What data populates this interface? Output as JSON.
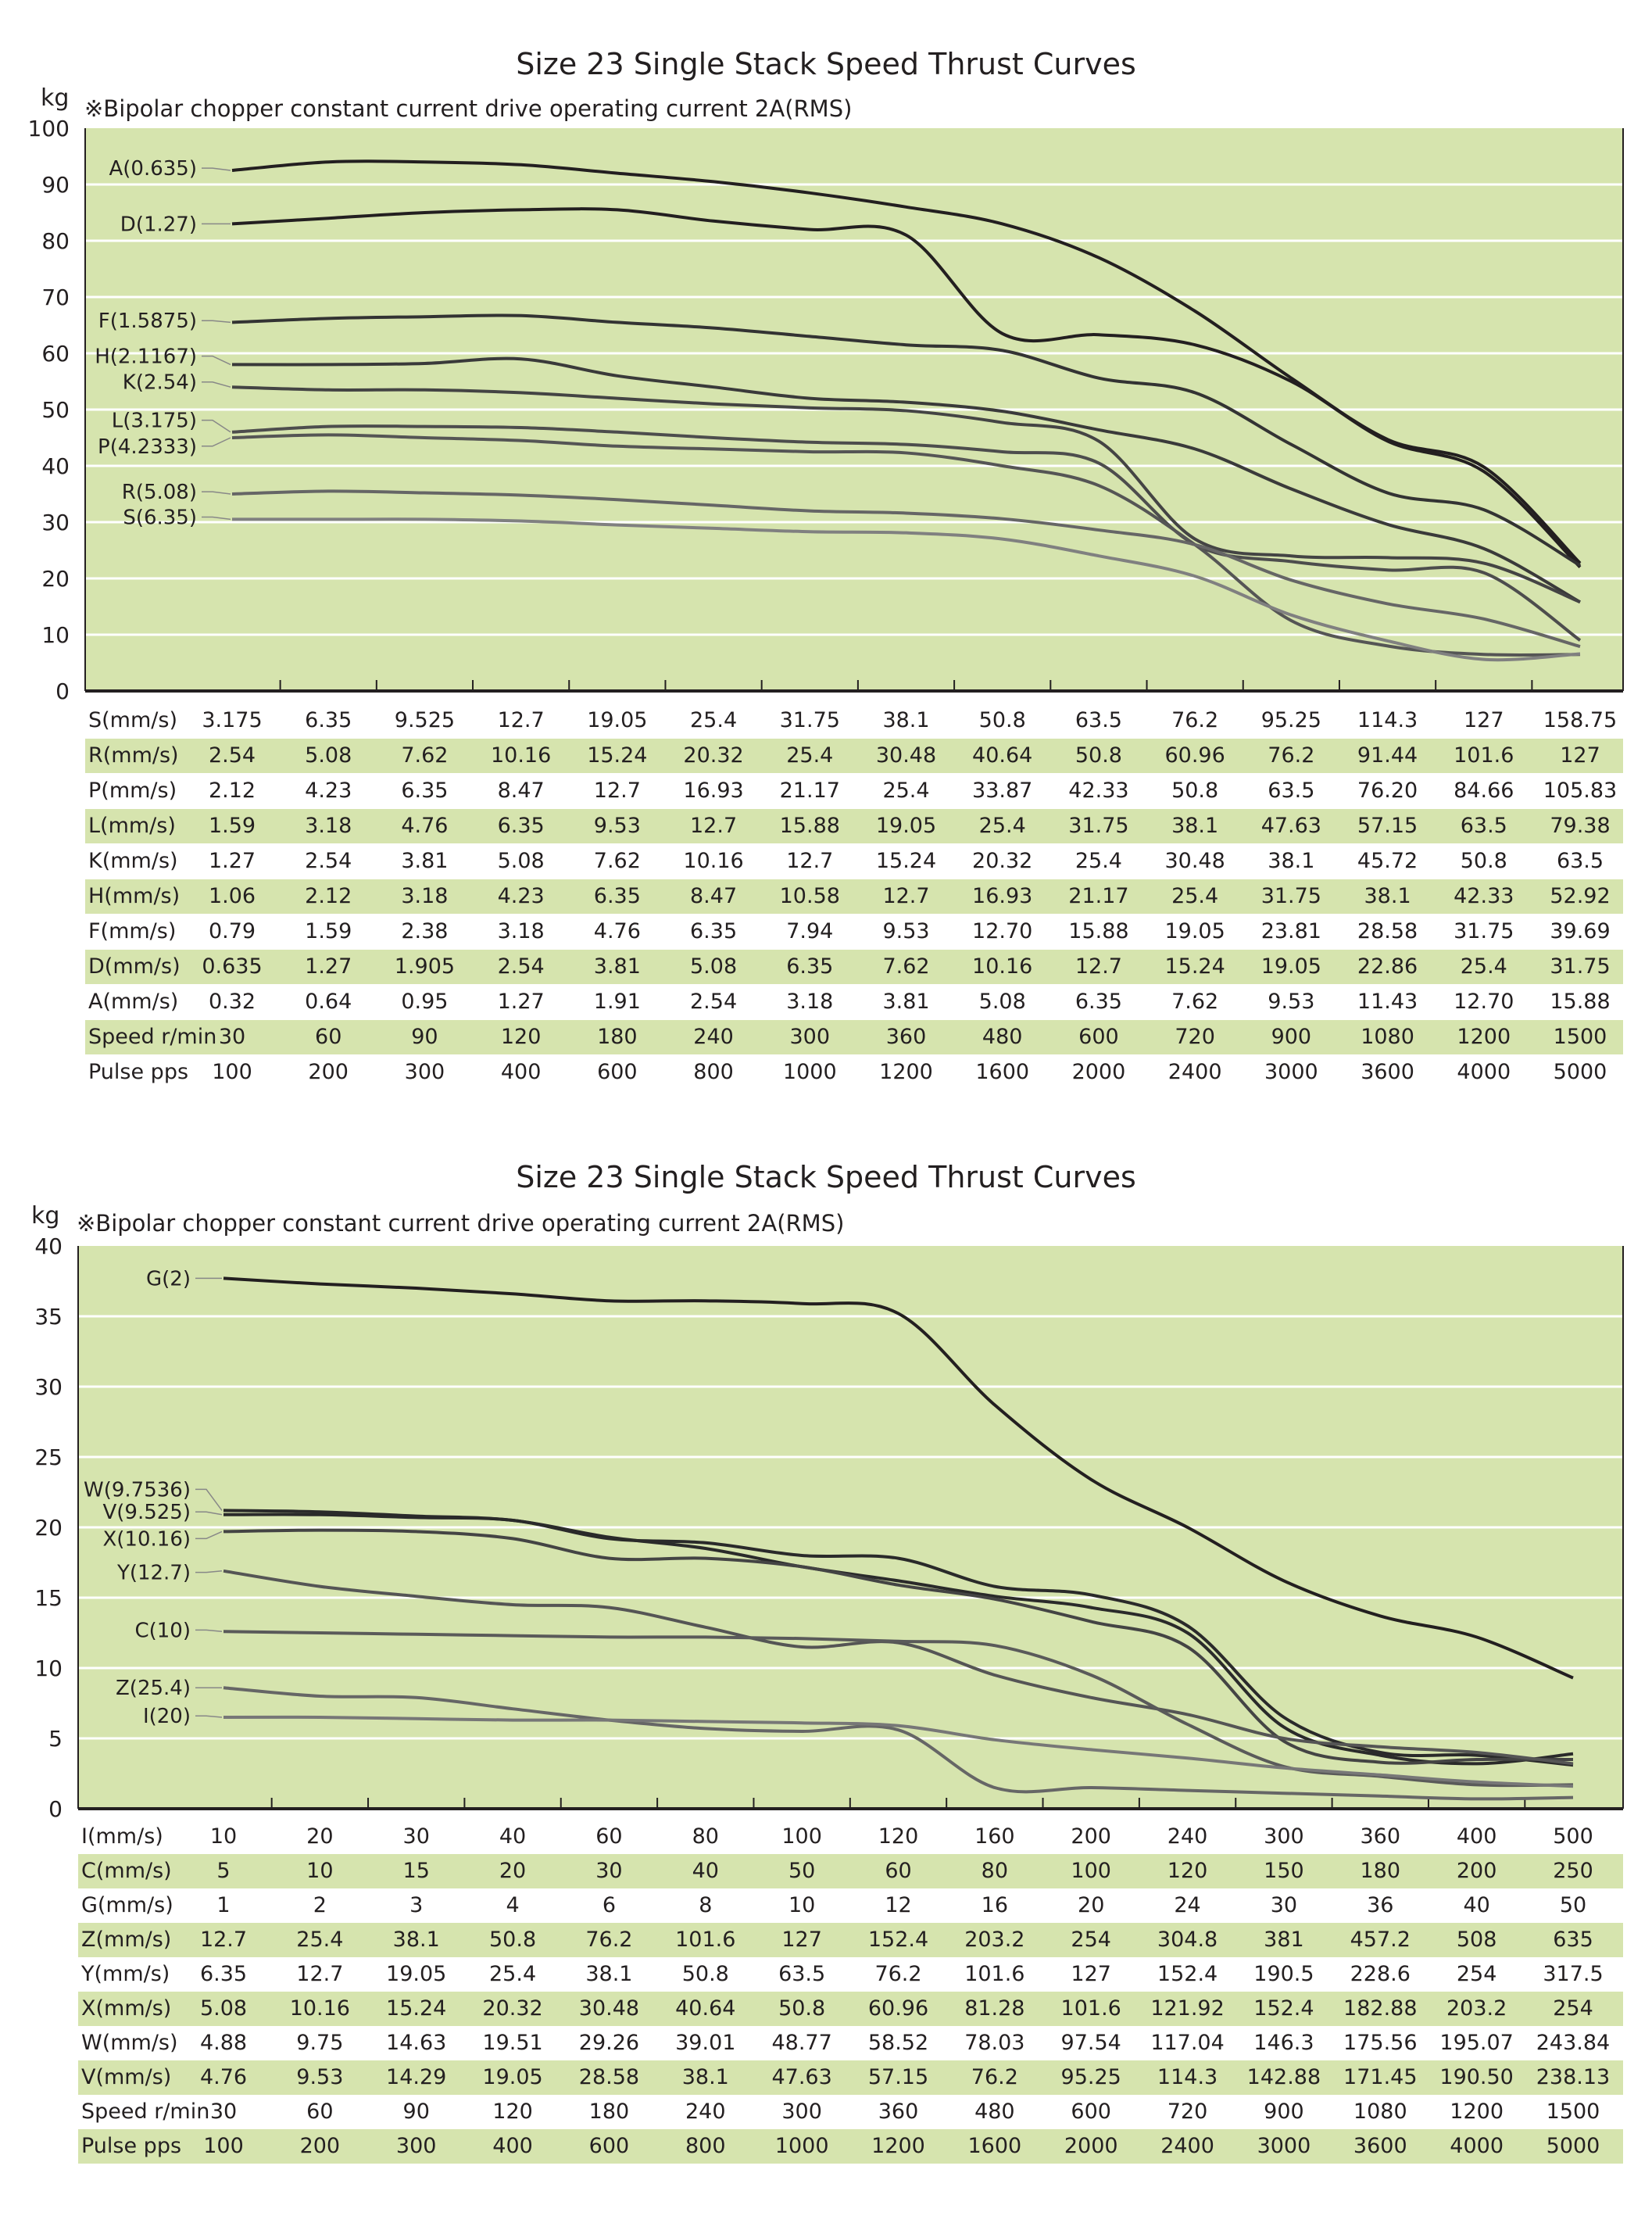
{
  "colors": {
    "plot_background": "#d6e4ae",
    "gridline": "#ffffff",
    "curve_dark": "#231f20"
  },
  "chart_data": [
    {
      "type": "line",
      "title": "Size 23 Single Stack Speed Thrust Curves",
      "ylabel": "kg",
      "subtitle": "※Bipolar chopper constant current drive operating current  2A(RMS)",
      "ylim": [
        0,
        100
      ],
      "yticks": [
        "0",
        "10",
        "20",
        "30",
        "40",
        "50",
        "60",
        "70",
        "80",
        "90",
        "100"
      ],
      "grid": true,
      "series": [
        {
          "name": "A(0.635)",
          "values": [
            92.5,
            94,
            94,
            93.5,
            92,
            90.5,
            88.5,
            86,
            83,
            77,
            67.5,
            55.6,
            44.7,
            39.8,
            22.7
          ]
        },
        {
          "name": "D(1.27)",
          "values": [
            83,
            84,
            85,
            85.5,
            85.5,
            83.5,
            82,
            81,
            63.5,
            63.3,
            61.5,
            55,
            44.4,
            39,
            22
          ]
        },
        {
          "name": "F(1.5875)",
          "values": [
            65.5,
            66.2,
            66.5,
            66.7,
            65.5,
            64.5,
            63,
            61.5,
            60.5,
            55.6,
            53,
            43.8,
            35.2,
            32.2,
            22.3
          ]
        },
        {
          "name": "H(2.1167)",
          "values": [
            58,
            58,
            58.2,
            59,
            56,
            54,
            52,
            51.3,
            49.7,
            46.4,
            43,
            35.9,
            29.6,
            25.3,
            15.8
          ]
        },
        {
          "name": "K(2.54)",
          "values": [
            54,
            53.5,
            53.5,
            53,
            52,
            51,
            50.3,
            49.8,
            47.7,
            44.4,
            27,
            24,
            23.7,
            22.7,
            15.8
          ]
        },
        {
          "name": "L(3.175)",
          "values": [
            46,
            47,
            47,
            46.8,
            46,
            45,
            44.2,
            43.8,
            42.5,
            40.5,
            26,
            23,
            21.5,
            21,
            9
          ]
        },
        {
          "name": "P(4.2333)",
          "values": [
            45,
            45.5,
            45,
            44.5,
            43.5,
            43,
            42.5,
            42.3,
            40,
            36.5,
            26,
            12.5,
            8,
            6.5,
            6.5
          ]
        },
        {
          "name": "R(5.08)",
          "values": [
            35,
            35.5,
            35.2,
            34.8,
            34,
            33,
            32,
            31.6,
            30.6,
            28.6,
            26,
            19.7,
            15.5,
            12.8,
            7.9
          ]
        },
        {
          "name": "S(6.35)",
          "values": [
            30.5,
            30.5,
            30.5,
            30.2,
            29.5,
            28.9,
            28.3,
            28.1,
            27,
            24,
            20.4,
            13.5,
            8.9,
            5.6,
            6.6
          ]
        }
      ],
      "table": [
        {
          "label": "S(mm/s)",
          "values": [
            "3.175",
            "6.35",
            "9.525",
            "12.7",
            "19.05",
            "25.4",
            "31.75",
            "38.1",
            "50.8",
            "63.5",
            "76.2",
            "95.25",
            "114.3",
            "127",
            "158.75"
          ]
        },
        {
          "label": "R(mm/s)",
          "values": [
            "2.54",
            "5.08",
            "7.62",
            "10.16",
            "15.24",
            "20.32",
            "25.4",
            "30.48",
            "40.64",
            "50.8",
            "60.96",
            "76.2",
            "91.44",
            "101.6",
            "127"
          ]
        },
        {
          "label": "P(mm/s)",
          "values": [
            "2.12",
            "4.23",
            "6.35",
            "8.47",
            "12.7",
            "16.93",
            "21.17",
            "25.4",
            "33.87",
            "42.33",
            "50.8",
            "63.5",
            "76.20",
            "84.66",
            "105.83"
          ]
        },
        {
          "label": "L(mm/s)",
          "values": [
            "1.59",
            "3.18",
            "4.76",
            "6.35",
            "9.53",
            "12.7",
            "15.88",
            "19.05",
            "25.4",
            "31.75",
            "38.1",
            "47.63",
            "57.15",
            "63.5",
            "79.38"
          ]
        },
        {
          "label": "K(mm/s)",
          "values": [
            "1.27",
            "2.54",
            "3.81",
            "5.08",
            "7.62",
            "10.16",
            "12.7",
            "15.24",
            "20.32",
            "25.4",
            "30.48",
            "38.1",
            "45.72",
            "50.8",
            "63.5"
          ]
        },
        {
          "label": "H(mm/s)",
          "values": [
            "1.06",
            "2.12",
            "3.18",
            "4.23",
            "6.35",
            "8.47",
            "10.58",
            "12.7",
            "16.93",
            "21.17",
            "25.4",
            "31.75",
            "38.1",
            "42.33",
            "52.92"
          ]
        },
        {
          "label": "F(mm/s)",
          "values": [
            "0.79",
            "1.59",
            "2.38",
            "3.18",
            "4.76",
            "6.35",
            "7.94",
            "9.53",
            "12.70",
            "15.88",
            "19.05",
            "23.81",
            "28.58",
            "31.75",
            "39.69"
          ]
        },
        {
          "label": "D(mm/s)",
          "values": [
            "0.635",
            "1.27",
            "1.905",
            "2.54",
            "3.81",
            "5.08",
            "6.35",
            "7.62",
            "10.16",
            "12.7",
            "15.24",
            "19.05",
            "22.86",
            "25.4",
            "31.75"
          ]
        },
        {
          "label": "A(mm/s)",
          "values": [
            "0.32",
            "0.64",
            "0.95",
            "1.27",
            "1.91",
            "2.54",
            "3.18",
            "3.81",
            "5.08",
            "6.35",
            "7.62",
            "9.53",
            "11.43",
            "12.70",
            "15.88"
          ]
        },
        {
          "label": "Speed r/min",
          "values": [
            "30",
            "60",
            "90",
            "120",
            "180",
            "240",
            "300",
            "360",
            "480",
            "600",
            "720",
            "900",
            "1080",
            "1200",
            "1500"
          ]
        },
        {
          "label": "Pulse pps",
          "values": [
            "100",
            "200",
            "300",
            "400",
            "600",
            "800",
            "1000",
            "1200",
            "1600",
            "2000",
            "2400",
            "3000",
            "3600",
            "4000",
            "5000"
          ]
        }
      ]
    },
    {
      "type": "line",
      "title": "Size 23 Single Stack Speed Thrust Curves",
      "ylabel": "kg",
      "subtitle": "※Bipolar chopper constant current drive operating current  2A(RMS)",
      "ylim": [
        0,
        40
      ],
      "yticks": [
        "0",
        "5",
        "10",
        "15",
        "20",
        "25",
        "30",
        "35",
        "40"
      ],
      "grid": true,
      "series": [
        {
          "name": "G(2)",
          "values": [
            37.7,
            37.3,
            37,
            36.6,
            36.1,
            36.1,
            35.9,
            35.2,
            28.7,
            23.4,
            20,
            16.2,
            13.7,
            12.2,
            9.3
          ]
        },
        {
          "name": "W(9.7536)",
          "values": [
            21.2,
            21.1,
            20.8,
            20.5,
            19.3,
            18.5,
            17.2,
            16.2,
            15.1,
            14.3,
            12.5,
            5.8,
            3.8,
            3.2,
            3.9
          ]
        },
        {
          "name": "V(9.525)",
          "values": [
            20.9,
            20.9,
            20.7,
            20.5,
            19.2,
            18.9,
            18,
            17.8,
            15.8,
            15.2,
            13,
            6.5,
            4,
            3.8,
            3.1
          ]
        },
        {
          "name": "X(10.16)",
          "values": [
            19.7,
            19.8,
            19.7,
            19.2,
            17.8,
            17.8,
            17.2,
            15.9,
            14.9,
            13.3,
            11.5,
            4.8,
            3.3,
            3.5,
            3.5
          ]
        },
        {
          "name": "Y(12.7)",
          "values": [
            16.9,
            15.8,
            15.1,
            14.5,
            14.3,
            12.9,
            11.5,
            11.8,
            9.5,
            7.9,
            6.7,
            5,
            4.4,
            4,
            3.2
          ]
        },
        {
          "name": "C(10)",
          "values": [
            12.6,
            12.5,
            12.4,
            12.3,
            12.2,
            12.2,
            12.1,
            11.9,
            11.6,
            9.5,
            6,
            3,
            2.3,
            1.7,
            1.7
          ]
        },
        {
          "name": "Z(25.4)",
          "values": [
            8.6,
            8,
            7.9,
            7.1,
            6.3,
            5.7,
            5.5,
            5.6,
            1.5,
            1.5,
            1.3,
            1.1,
            0.9,
            0.7,
            0.8
          ]
        },
        {
          "name": "I(20)",
          "values": [
            6.5,
            6.5,
            6.4,
            6.3,
            6.3,
            6.2,
            6.1,
            5.9,
            4.9,
            4.2,
            3.6,
            2.9,
            2.4,
            1.9,
            1.6
          ]
        }
      ],
      "table": [
        {
          "label": "I(mm/s)",
          "values": [
            "10",
            "20",
            "30",
            "40",
            "60",
            "80",
            "100",
            "120",
            "160",
            "200",
            "240",
            "300",
            "360",
            "400",
            "500"
          ]
        },
        {
          "label": "C(mm/s)",
          "values": [
            "5",
            "10",
            "15",
            "20",
            "30",
            "40",
            "50",
            "60",
            "80",
            "100",
            "120",
            "150",
            "180",
            "200",
            "250"
          ]
        },
        {
          "label": "G(mm/s)",
          "values": [
            "1",
            "2",
            "3",
            "4",
            "6",
            "8",
            "10",
            "12",
            "16",
            "20",
            "24",
            "30",
            "36",
            "40",
            "50"
          ]
        },
        {
          "label": "Z(mm/s)",
          "values": [
            "12.7",
            "25.4",
            "38.1",
            "50.8",
            "76.2",
            "101.6",
            "127",
            "152.4",
            "203.2",
            "254",
            "304.8",
            "381",
            "457.2",
            "508",
            "635"
          ]
        },
        {
          "label": "Y(mm/s)",
          "values": [
            "6.35",
            "12.7",
            "19.05",
            "25.4",
            "38.1",
            "50.8",
            "63.5",
            "76.2",
            "101.6",
            "127",
            "152.4",
            "190.5",
            "228.6",
            "254",
            "317.5"
          ]
        },
        {
          "label": "X(mm/s)",
          "values": [
            "5.08",
            "10.16",
            "15.24",
            "20.32",
            "30.48",
            "40.64",
            "50.8",
            "60.96",
            "81.28",
            "101.6",
            "121.92",
            "152.4",
            "182.88",
            "203.2",
            "254"
          ]
        },
        {
          "label": "W(mm/s)",
          "values": [
            "4.88",
            "9.75",
            "14.63",
            "19.51",
            "29.26",
            "39.01",
            "48.77",
            "58.52",
            "78.03",
            "97.54",
            "117.04",
            "146.3",
            "175.56",
            "195.07",
            "243.84"
          ]
        },
        {
          "label": "V(mm/s)",
          "values": [
            "4.76",
            "9.53",
            "14.29",
            "19.05",
            "28.58",
            "38.1",
            "47.63",
            "57.15",
            "76.2",
            "95.25",
            "114.3",
            "142.88",
            "171.45",
            "190.50",
            "238.13"
          ]
        },
        {
          "label": "Speed r/min",
          "values": [
            "30",
            "60",
            "90",
            "120",
            "180",
            "240",
            "300",
            "360",
            "480",
            "600",
            "720",
            "900",
            "1080",
            "1200",
            "1500"
          ]
        },
        {
          "label": "Pulse pps",
          "values": [
            "100",
            "200",
            "300",
            "400",
            "600",
            "800",
            "1000",
            "1200",
            "1600",
            "2000",
            "2400",
            "3000",
            "3600",
            "4000",
            "5000"
          ]
        }
      ]
    }
  ]
}
